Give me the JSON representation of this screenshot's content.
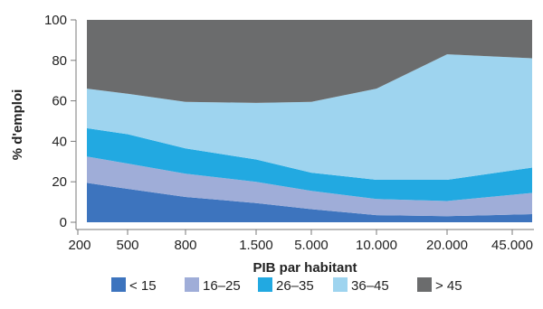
{
  "chart_data": {
    "type": "area",
    "stacked": true,
    "title": "",
    "xlabel": "PIB par habitant",
    "ylabel": "% d'emploi",
    "ylim": [
      0,
      100
    ],
    "yticks": [
      0,
      20,
      40,
      60,
      80,
      100
    ],
    "xticks": [
      "200",
      "500",
      "800",
      "1.500",
      "5.000",
      "10.000",
      "20.000",
      "45.000"
    ],
    "x": [
      "200",
      "500",
      "800",
      "1.500",
      "5.000",
      "10.000",
      "20.000",
      "45.000"
    ],
    "grid": false,
    "legend_position": "bottom",
    "series": [
      {
        "name": "< 15",
        "color": "#3d74be",
        "values": [
          19.5,
          16.5,
          12.5,
          9.5,
          6.5,
          3.5,
          3.0,
          4.0
        ]
      },
      {
        "name": "16–25",
        "color": "#9fadd8",
        "values": [
          13.0,
          12.5,
          11.5,
          10.5,
          9.0,
          8.0,
          7.5,
          10.5
        ]
      },
      {
        "name": "26–35",
        "color": "#22a9e1",
        "values": [
          14.0,
          14.5,
          12.5,
          11.0,
          9.0,
          9.5,
          10.5,
          12.5
        ]
      },
      {
        "name": "36–45",
        "color": "#9ed4ef",
        "values": [
          19.5,
          20.0,
          23.0,
          28.0,
          35.0,
          45.0,
          62.0,
          54.0
        ]
      },
      {
        "name": "> 45",
        "color": "#6b6c6d",
        "values": [
          34.0,
          36.5,
          40.5,
          41.0,
          40.5,
          34.0,
          17.0,
          19.0
        ]
      }
    ]
  }
}
